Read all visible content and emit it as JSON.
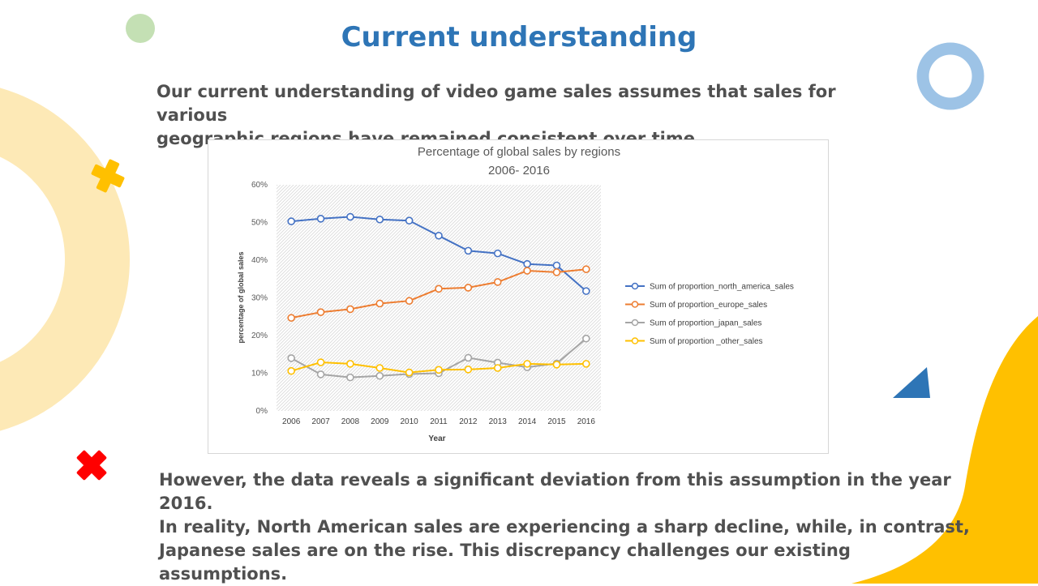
{
  "slide": {
    "title": "Current understanding",
    "intro_line1": "Our current understanding of video game sales assumes that sales for various",
    "intro_line2": "geographic regions have remained consistent over time.",
    "conclusion_line1": "However, the data reveals a significant deviation from this assumption in the year 2016.",
    "conclusion_line2": "In reality, North American sales are experiencing a sharp decline, while, in contrast,",
    "conclusion_line3": "Japanese sales are on the rise. This discrepancy challenges our existing assumptions."
  },
  "decor_colors": {
    "ring_left": "#fde9b6",
    "green_dot": "#c4e0b4",
    "blue_ring": "#9dc3e6",
    "yellow_cross": "#ffc000",
    "red_cross": "#ff0000",
    "blue_triangle": "#2e75b6",
    "yellow_wave": "#ffc000"
  },
  "chart_data": {
    "type": "line",
    "title_line1": "Percentage of global sales by regions",
    "title_line2": "2006- 2016",
    "xlabel": "Year",
    "ylabel": "percentage of global sales",
    "categories": [
      "2006",
      "2007",
      "2008",
      "2009",
      "2010",
      "2011",
      "2012",
      "2013",
      "2014",
      "2015",
      "2016"
    ],
    "ylim": [
      0,
      60
    ],
    "yticks": [
      "0%",
      "10%",
      "20%",
      "30%",
      "40%",
      "50%",
      "60%"
    ],
    "grid": false,
    "plot_background": "hatched",
    "legend_position": "right",
    "series": [
      {
        "name": "Sum of proportion_north_america_sales",
        "color": "#4472c4",
        "values": [
          50.3,
          51.0,
          51.5,
          50.8,
          50.5,
          46.5,
          42.5,
          41.8,
          39.0,
          38.6,
          31.8
        ]
      },
      {
        "name": "Sum of proportion_europe_sales",
        "color": "#ed7d31",
        "values": [
          24.7,
          26.2,
          27.0,
          28.5,
          29.2,
          32.4,
          32.7,
          34.2,
          37.2,
          36.8,
          37.6
        ]
      },
      {
        "name": "Sum of proportion_japan_sales",
        "color": "#a5a5a5",
        "values": [
          14.0,
          9.7,
          8.9,
          9.3,
          9.8,
          10.0,
          14.1,
          12.8,
          11.6,
          12.6,
          19.2
        ]
      },
      {
        "name": "Sum of proportion _other_sales",
        "color": "#ffc000",
        "values": [
          10.6,
          12.9,
          12.5,
          11.4,
          10.2,
          10.9,
          11.0,
          11.4,
          12.5,
          12.3,
          12.5
        ]
      }
    ]
  }
}
